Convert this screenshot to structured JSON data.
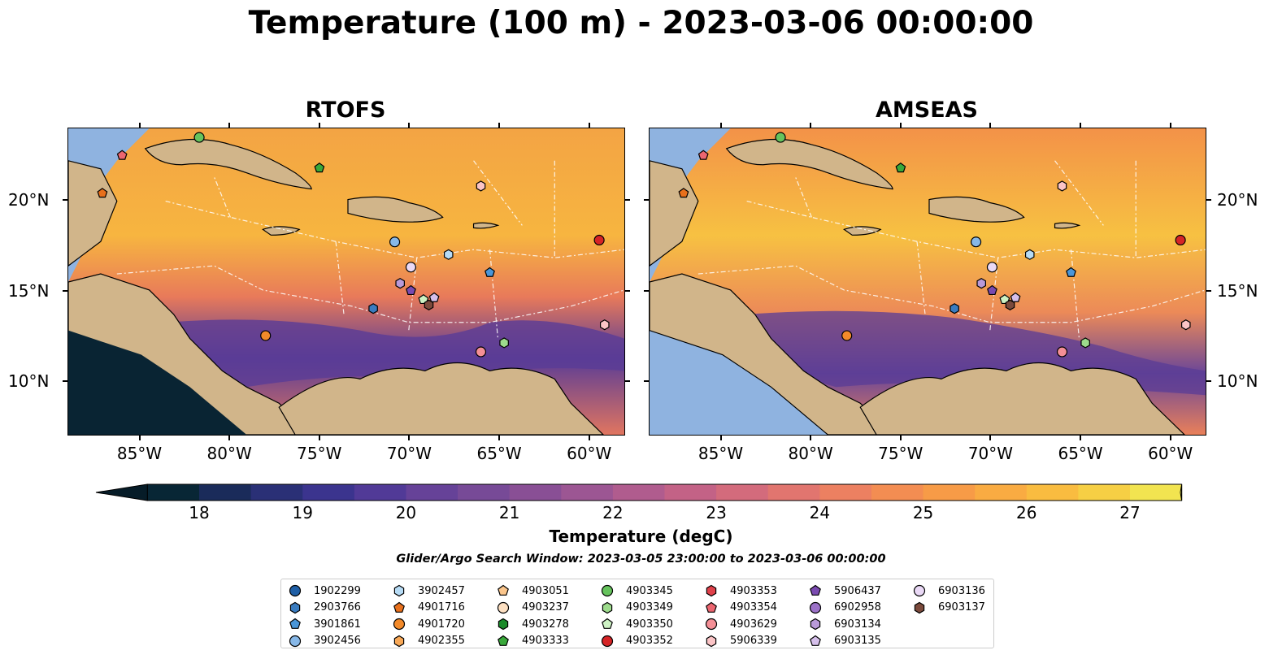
{
  "title": "Temperature (100 m) - 2023-03-06 00:00:00",
  "panels": [
    {
      "title": "RTOFS",
      "y_axis_side": "left"
    },
    {
      "title": "AMSEAS",
      "y_axis_side": "right"
    }
  ],
  "axes": {
    "x_ticks": [
      "85°W",
      "80°W",
      "75°W",
      "70°W",
      "65°W",
      "60°W"
    ],
    "y_ticks": [
      "20°N",
      "15°N",
      "10°N"
    ]
  },
  "colorbar": {
    "label": "Temperature (degC)",
    "ticks": [
      "18",
      "19",
      "20",
      "21",
      "22",
      "23",
      "24",
      "25",
      "26",
      "27"
    ],
    "colors": [
      "#082635",
      "#1a2b5a",
      "#2a3076",
      "#3b348e",
      "#513a97",
      "#664298",
      "#774a97",
      "#894f95",
      "#9c5693",
      "#b05c8e",
      "#c36286",
      "#d36b7c",
      "#e1756f",
      "#ec8061",
      "#f38d52",
      "#f79b47",
      "#f9ab42",
      "#f9bc40",
      "#f6cf44",
      "#f2e450"
    ],
    "extend_low": "#061c28",
    "extend_high": "#ecf25a"
  },
  "search_window": "Glider/Argo Search Window: 2023-03-05 23:00:00 to 2023-03-06 00:00:00",
  "legend": [
    {
      "id": "1902299",
      "marker": "circle",
      "color": "#1f5fa6"
    },
    {
      "id": "2903766",
      "marker": "hexagon",
      "color": "#3a7cc0"
    },
    {
      "id": "3901861",
      "marker": "pentagon",
      "color": "#4a96d8"
    },
    {
      "id": "3902456",
      "marker": "circle",
      "color": "#87b8e8"
    },
    {
      "id": "3902457",
      "marker": "hexagon",
      "color": "#b6dbf5"
    },
    {
      "id": "4901716",
      "marker": "pentagon",
      "color": "#e8701c"
    },
    {
      "id": "4901720",
      "marker": "circle",
      "color": "#f38a2a"
    },
    {
      "id": "4902355",
      "marker": "hexagon",
      "color": "#f8a857"
    },
    {
      "id": "4903051",
      "marker": "pentagon",
      "color": "#fbc68c"
    },
    {
      "id": "4903237",
      "marker": "circle",
      "color": "#fde0c2"
    },
    {
      "id": "4903278",
      "marker": "hexagon",
      "color": "#1b8a2a"
    },
    {
      "id": "4903333",
      "marker": "pentagon",
      "color": "#39a83a"
    },
    {
      "id": "4903345",
      "marker": "circle",
      "color": "#66c35d"
    },
    {
      "id": "4903349",
      "marker": "hexagon",
      "color": "#9ddb8c"
    },
    {
      "id": "4903350",
      "marker": "pentagon",
      "color": "#cdf2c4"
    },
    {
      "id": "4903352",
      "marker": "circle",
      "color": "#d62426"
    },
    {
      "id": "4903353",
      "marker": "hexagon",
      "color": "#e0414a"
    },
    {
      "id": "4903354",
      "marker": "pentagon",
      "color": "#ec6670"
    },
    {
      "id": "4903629",
      "marker": "circle",
      "color": "#f48f96"
    },
    {
      "id": "5906339",
      "marker": "hexagon",
      "color": "#fbc4c6"
    },
    {
      "id": "5906437",
      "marker": "pentagon",
      "color": "#7a4ab0"
    },
    {
      "id": "6902958",
      "marker": "circle",
      "color": "#9c72c8"
    },
    {
      "id": "6903134",
      "marker": "hexagon",
      "color": "#b99ad9"
    },
    {
      "id": "6903135",
      "marker": "pentagon",
      "color": "#d5bfea"
    },
    {
      "id": "6903136",
      "marker": "circle",
      "color": "#ead9f6"
    },
    {
      "id": "6903137",
      "marker": "hexagon",
      "color": "#7b4a3c"
    }
  ],
  "map_extent": {
    "lon": [
      -89,
      -58
    ],
    "lat": [
      7,
      24
    ]
  },
  "floats": [
    {
      "id": "4901716",
      "lon": -87.1,
      "lat": 20.4
    },
    {
      "id": "4903354",
      "lon": -86.0,
      "lat": 22.5
    },
    {
      "id": "4903345",
      "lon": -81.7,
      "lat": 23.5
    },
    {
      "id": "4903333",
      "lon": -75.0,
      "lat": 21.8
    },
    {
      "id": "5906339",
      "lon": -66.0,
      "lat": 20.8
    },
    {
      "id": "4903352",
      "lon": -59.4,
      "lat": 17.8
    },
    {
      "id": "3902456",
      "lon": -70.8,
      "lat": 17.7
    },
    {
      "id": "3902457",
      "lon": -67.8,
      "lat": 17.0
    },
    {
      "id": "3901861",
      "lon": -65.5,
      "lat": 16.0
    },
    {
      "id": "6903136",
      "lon": -69.9,
      "lat": 16.3
    },
    {
      "id": "6903134",
      "lon": -70.5,
      "lat": 15.4
    },
    {
      "id": "5906437",
      "lon": -69.9,
      "lat": 15.0
    },
    {
      "id": "4903350",
      "lon": -69.2,
      "lat": 14.5
    },
    {
      "id": "6903135",
      "lon": -68.6,
      "lat": 14.6
    },
    {
      "id": "6903137",
      "lon": -68.9,
      "lat": 14.2
    },
    {
      "id": "2903766",
      "lon": -72.0,
      "lat": 14.0
    },
    {
      "id": "4901720",
      "lon": -78.0,
      "lat": 12.5
    },
    {
      "id": "4903629",
      "lon": -66.0,
      "lat": 11.6
    },
    {
      "id": "4903349",
      "lon": -64.7,
      "lat": 12.1
    },
    {
      "id": "5906339",
      "lon": -59.1,
      "lat": 13.1
    }
  ]
}
